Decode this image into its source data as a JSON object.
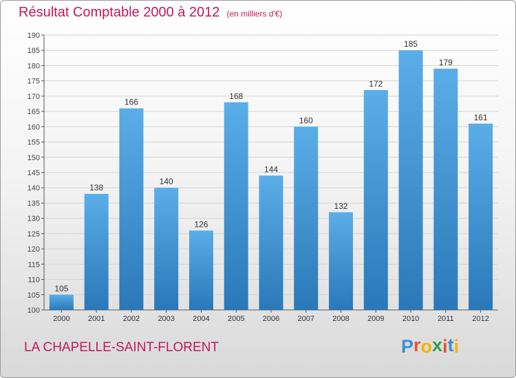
{
  "header": {
    "title": "Résultat Comptable 2000 à 2012",
    "subtitle": "(en milliers d'€)"
  },
  "footer": {
    "city": "LA CHAPELLE-SAINT-FLORENT",
    "logo_letters": [
      "P",
      "r",
      "o",
      "x",
      "i",
      "t",
      "i"
    ],
    "logo_colors": [
      "#3a8fd6",
      "#e8552b",
      "#f4b400",
      "#2e9e4f",
      "#e8552b",
      "#3a8fd6",
      "#f4b400"
    ]
  },
  "chart_data": {
    "type": "bar",
    "categories": [
      "2000",
      "2001",
      "2002",
      "2003",
      "2004",
      "2005",
      "2006",
      "2007",
      "2008",
      "2009",
      "2010",
      "2011",
      "2012"
    ],
    "values": [
      105,
      138,
      166,
      140,
      126,
      168,
      144,
      160,
      132,
      172,
      185,
      179,
      161
    ],
    "title": "Résultat Comptable 2000 à 2012",
    "xlabel": "",
    "ylabel": "",
    "ylim": [
      100,
      190
    ],
    "ytick_step": 5,
    "grid": true,
    "bar_color_top": "#5aaee8",
    "bar_color_bottom": "#2a78b8"
  }
}
